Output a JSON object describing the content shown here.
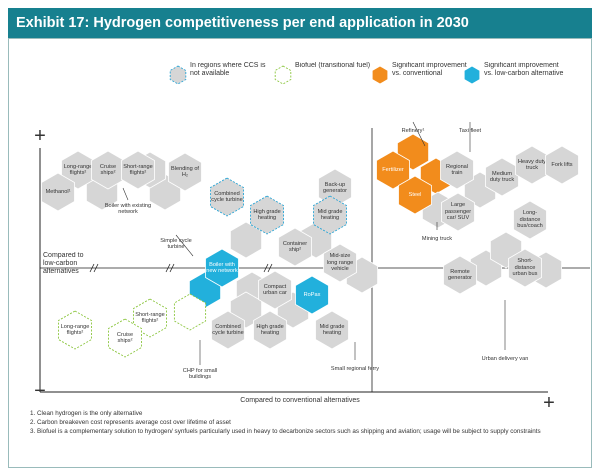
{
  "header": {
    "title": "Exhibit 17: Hydrogen competitiveness per end application in 2030"
  },
  "legend": {
    "items": [
      {
        "label": "In regions where CCS is not available",
        "style": "ccs"
      },
      {
        "label": "Biofuel (transitional fuel)",
        "style": "biofuel"
      },
      {
        "label": "Significant improvement vs. conventional",
        "style": "orange"
      },
      {
        "label": "Significant improvement vs. low-carbon alternative",
        "style": "blue"
      }
    ]
  },
  "axes": {
    "y_plus": "+",
    "y_minus": "−",
    "x_plus": "+",
    "x_label": "Compared to conventional alternatives",
    "mid_label": "Compared to low-carbon alternatives"
  },
  "nodes": [
    {
      "label": "Long-range flights²",
      "style": "gray"
    },
    {
      "label": "Cruise ships²",
      "style": "gray"
    },
    {
      "label": "Short-range flights²",
      "style": "gray"
    },
    {
      "label": "Methanol¹",
      "style": "gray"
    },
    {
      "label": "Boiler with existing network",
      "style": "label"
    },
    {
      "label": "Blending of H₂",
      "style": "gray"
    },
    {
      "label": "Combined cycle turbine",
      "style": "ccs"
    },
    {
      "label": "High grade heating",
      "style": "ccs"
    },
    {
      "label": "Back-up generator",
      "style": "gray"
    },
    {
      "label": "Mid grade heating",
      "style": "ccs"
    },
    {
      "label": "Container ship²",
      "style": "gray"
    },
    {
      "label": "Simple cycle turbine",
      "style": "label"
    },
    {
      "label": "Boiler with new network",
      "style": "blue"
    },
    {
      "label": "Mid-size long range vehicle",
      "style": "gray"
    },
    {
      "label": "Compact urban car",
      "style": "gray"
    },
    {
      "label": "RoPax",
      "style": "blue"
    },
    {
      "label": "Combined cycle turbine",
      "style": "gray"
    },
    {
      "label": "High grade heating",
      "style": "gray"
    },
    {
      "label": "Mid grade heating",
      "style": "gray"
    },
    {
      "label": "CHP for small buildings",
      "style": "label"
    },
    {
      "label": "Small regional ferry",
      "style": "label"
    },
    {
      "label": "Long-range flights²",
      "style": "biofuel"
    },
    {
      "label": "Short-range flights²",
      "style": "biofuel"
    },
    {
      "label": "Cruise ships²",
      "style": "biofuel"
    },
    {
      "label": "Refinery¹",
      "style": "label"
    },
    {
      "label": "Taxi fleet",
      "style": "label"
    },
    {
      "label": "Fertilizer",
      "style": "orange"
    },
    {
      "label": "Steel",
      "style": "orange"
    },
    {
      "label": "Regional train",
      "style": "gray"
    },
    {
      "label": "Medium duty truck",
      "style": "gray"
    },
    {
      "label": "Heavy duty truck",
      "style": "gray"
    },
    {
      "label": "Fork lifts",
      "style": "gray"
    },
    {
      "label": "Large passenger car/ SUV",
      "style": "gray"
    },
    {
      "label": "Mining truck",
      "style": "label"
    },
    {
      "label": "Long-distance bus/coach",
      "style": "gray"
    },
    {
      "label": "Remote generator",
      "style": "gray"
    },
    {
      "label": "Short-distance urban bus",
      "style": "gray"
    },
    {
      "label": "Urban delivery van",
      "style": "label"
    }
  ],
  "footnotes": [
    "1. Clean hydrogen is the only alternative",
    "2. Carbon breakeven cost represents average cost over lifetime of asset",
    "3. Biofuel is a complementary solution to hydrogen/ synfuels particularly used in heavy to decarbonize sectors such as shipping and aviation; usage will be subject to supply constraints"
  ]
}
